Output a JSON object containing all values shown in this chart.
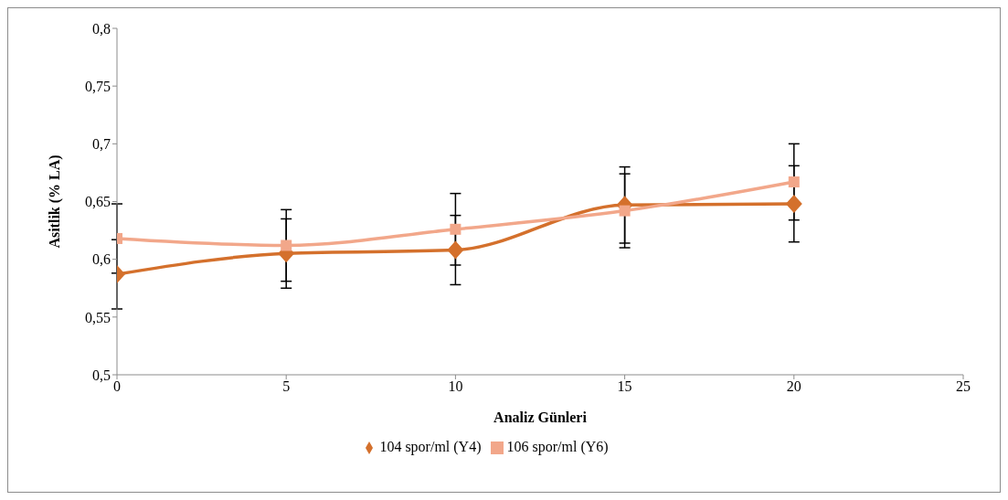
{
  "chart_data": {
    "type": "line",
    "xlabel": "Analiz Günleri",
    "ylabel": "Asitlik (% LA)",
    "x": [
      0,
      5,
      10,
      15,
      20
    ],
    "series": [
      {
        "name": "104 spor/ml (Y4)",
        "color": "#d4702c",
        "marker": "diamond",
        "values": [
          0.587,
          0.605,
          0.608,
          0.647,
          0.648
        ],
        "errors": [
          0.03,
          0.03,
          0.03,
          0.033,
          0.033
        ]
      },
      {
        "name": "106 spor/ml (Y6)",
        "color": "#f2a78a",
        "marker": "square",
        "values": [
          0.618,
          0.612,
          0.626,
          0.642,
          0.667
        ],
        "errors": [
          0.03,
          0.031,
          0.031,
          0.032,
          0.033
        ]
      }
    ],
    "xlim": [
      0,
      25
    ],
    "xticks": [
      0,
      5,
      10,
      15,
      20,
      25
    ],
    "ylim": [
      0.5,
      0.8
    ],
    "yticks": [
      {
        "value": 0.5,
        "label": "0,5"
      },
      {
        "value": 0.55,
        "label": "0,55"
      },
      {
        "value": 0.6,
        "label": "0,6"
      },
      {
        "value": 0.65,
        "label": "0,65"
      },
      {
        "value": 0.7,
        "label": "0,7"
      },
      {
        "value": 0.75,
        "label": "0,75"
      },
      {
        "value": 0.8,
        "label": "0,8"
      }
    ],
    "legend": "bottom"
  }
}
